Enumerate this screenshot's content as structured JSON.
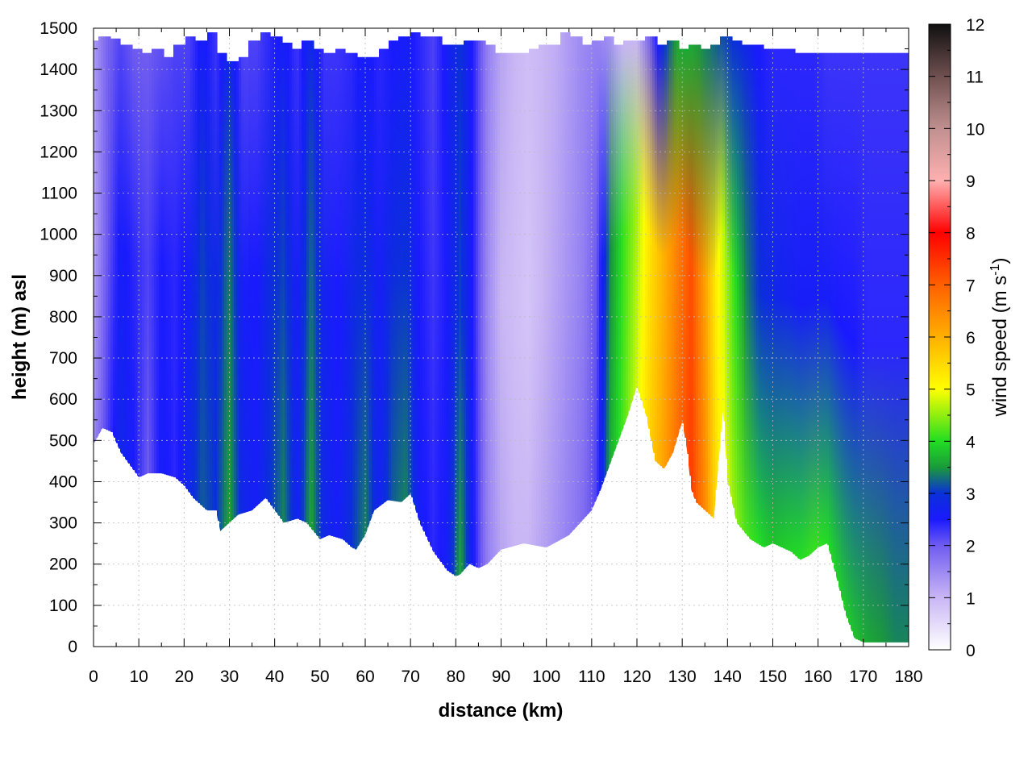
{
  "chart_data": {
    "type": "heatmap",
    "title": "",
    "xlabel": "distance (km)",
    "ylabel": "height (m) asl",
    "colorbar_label": "wind speed (m s",
    "colorbar_label_sup": "-1",
    "colorbar_label_end": ")",
    "xlim": [
      0,
      180
    ],
    "ylim": [
      0,
      1500
    ],
    "zlim": [
      0,
      12
    ],
    "x_ticks": [
      "0",
      "10",
      "20",
      "30",
      "40",
      "50",
      "60",
      "70",
      "80",
      "90",
      "100",
      "110",
      "120",
      "130",
      "140",
      "150",
      "160",
      "170",
      "180"
    ],
    "y_ticks": [
      "0",
      "100",
      "200",
      "300",
      "400",
      "500",
      "600",
      "700",
      "800",
      "900",
      "1000",
      "1100",
      "1200",
      "1300",
      "1400",
      "1500"
    ],
    "z_ticks": [
      "0",
      "1",
      "2",
      "3",
      "4",
      "5",
      "6",
      "7",
      "8",
      "9",
      "10",
      "11",
      "12"
    ],
    "grid": true,
    "colormap": [
      {
        "value": 0,
        "color": "#ffffff"
      },
      {
        "value": 1,
        "color": "#c9b6f5"
      },
      {
        "value": 2,
        "color": "#6f5cf0"
      },
      {
        "value": 2.5,
        "color": "#1a1aff"
      },
      {
        "value": 3,
        "color": "#0a30d8"
      },
      {
        "value": 3.5,
        "color": "#1a9a3a"
      },
      {
        "value": 4,
        "color": "#22dd22"
      },
      {
        "value": 5,
        "color": "#ffff00"
      },
      {
        "value": 6,
        "color": "#ffb000"
      },
      {
        "value": 7,
        "color": "#ff6000"
      },
      {
        "value": 8,
        "color": "#ff0000"
      },
      {
        "value": 9,
        "color": "#ffb0b0"
      },
      {
        "value": 10,
        "color": "#c09090"
      },
      {
        "value": 11,
        "color": "#705050"
      },
      {
        "value": 12,
        "color": "#101010"
      }
    ],
    "terrain": {
      "x": [
        0,
        2,
        4,
        6,
        8,
        10,
        12,
        15,
        18,
        20,
        22,
        25,
        27,
        28,
        30,
        32,
        35,
        38,
        40,
        42,
        45,
        47,
        50,
        52,
        55,
        57,
        58,
        60,
        62,
        65,
        68,
        70,
        72,
        75,
        78,
        80,
        81,
        83,
        85,
        87,
        90,
        95,
        100,
        105,
        110,
        112,
        115,
        118,
        120,
        122,
        124,
        126,
        128,
        130,
        131,
        132,
        133,
        135,
        137,
        139,
        140,
        142,
        145,
        148,
        150,
        152,
        154,
        156,
        158,
        160,
        162,
        164,
        166,
        168,
        170,
        175,
        180
      ],
      "height": [
        490,
        530,
        520,
        470,
        440,
        410,
        420,
        420,
        410,
        390,
        360,
        330,
        330,
        280,
        300,
        320,
        330,
        360,
        330,
        300,
        310,
        300,
        260,
        270,
        260,
        240,
        235,
        270,
        330,
        355,
        350,
        370,
        300,
        230,
        185,
        170,
        175,
        200,
        190,
        200,
        235,
        250,
        240,
        270,
        330,
        380,
        470,
        560,
        630,
        560,
        450,
        430,
        470,
        545,
        480,
        380,
        350,
        330,
        310,
        570,
        400,
        300,
        260,
        240,
        250,
        240,
        230,
        210,
        220,
        240,
        250,
        170,
        80,
        20,
        10,
        10,
        10
      ]
    },
    "top_height": [
      1470,
      1480,
      1475,
      1460,
      1450,
      1440,
      1450,
      1430,
      1460,
      1480,
      1470,
      1490,
      1440,
      1420,
      1430,
      1470,
      1490,
      1480,
      1465,
      1450,
      1470,
      1450,
      1440,
      1450,
      1440,
      1430,
      1430,
      1450,
      1470,
      1480,
      1490,
      1480,
      1480,
      1460,
      1460,
      1470,
      1470,
      1460,
      1440,
      1440,
      1440,
      1450,
      1460,
      1460,
      1490,
      1480,
      1460,
      1470,
      1480,
      1460,
      1470,
      1470,
      1480,
      1460,
      1470,
      1450,
      1460,
      1450,
      1460,
      1480,
      1470,
      1460,
      1460,
      1450,
      1450,
      1450,
      1440,
      1440,
      1440,
      1440,
      1440,
      1440,
      1440,
      1440,
      1440,
      1440,
      1440
    ],
    "wind_columns": {
      "x": [
        0,
        3,
        6,
        9,
        12,
        15,
        18,
        21,
        24,
        27,
        30,
        33,
        36,
        39,
        42,
        45,
        48,
        51,
        54,
        57,
        60,
        63,
        66,
        69,
        72,
        75,
        78,
        81,
        84,
        87,
        90,
        93,
        96,
        99,
        102,
        105,
        108,
        111,
        114,
        117,
        120,
        123,
        126,
        129,
        132,
        135,
        138,
        141,
        144,
        147,
        150,
        153,
        156,
        159,
        162,
        165,
        168,
        171,
        174,
        177,
        180
      ],
      "speed_low": [
        1.5,
        2.2,
        2.8,
        2.5,
        2.0,
        2.6,
        2.4,
        2.8,
        3.2,
        3.0,
        3.6,
        2.8,
        2.6,
        3.0,
        3.4,
        2.7,
        3.6,
        2.8,
        2.6,
        3.0,
        3.4,
        2.7,
        3.2,
        3.4,
        2.6,
        2.4,
        2.6,
        3.6,
        2.5,
        1.6,
        1.2,
        1.0,
        1.0,
        1.2,
        1.4,
        1.6,
        1.8,
        2.2,
        3.6,
        4.2,
        4.8,
        5.6,
        6.2,
        6.8,
        7.4,
        6.5,
        5.2,
        4.6,
        4.2,
        4.0,
        3.8,
        3.9,
        4.0,
        4.1,
        4.0,
        3.9,
        3.8,
        3.6,
        3.5,
        3.4,
        3.4
      ],
      "speed_mid": [
        1.2,
        2.0,
        2.6,
        2.4,
        2.2,
        2.5,
        2.4,
        2.6,
        3.1,
        2.8,
        3.4,
        2.6,
        2.5,
        2.9,
        3.1,
        2.6,
        3.3,
        2.7,
        2.5,
        2.8,
        3.0,
        2.6,
        2.9,
        3.0,
        2.5,
        2.3,
        2.5,
        3.1,
        2.4,
        1.5,
        1.0,
        0.9,
        0.8,
        1.0,
        1.2,
        1.4,
        1.6,
        2.0,
        3.4,
        4.1,
        4.6,
        5.4,
        6.0,
        6.6,
        7.2,
        6.2,
        5.0,
        4.2,
        3.4,
        3.0,
        2.8,
        2.7,
        2.6,
        2.6,
        2.6,
        2.5,
        2.5,
        2.4,
        2.4,
        2.4,
        2.4
      ],
      "speed_high": [
        1.3,
        1.9,
        2.2,
        2.0,
        2.0,
        2.1,
        2.2,
        2.2,
        2.6,
        2.3,
        2.8,
        2.2,
        2.2,
        2.4,
        2.6,
        2.3,
        2.8,
        2.3,
        2.3,
        2.4,
        2.6,
        2.4,
        2.5,
        2.6,
        2.4,
        2.2,
        2.6,
        3.0,
        2.4,
        1.6,
        1.2,
        1.0,
        0.9,
        1.0,
        1.1,
        1.3,
        1.5,
        1.6,
        1.4,
        1.0,
        1.0,
        2.0,
        3.0,
        3.6,
        3.6,
        3.4,
        3.2,
        3.0,
        2.8,
        2.5,
        2.4,
        2.4,
        2.4,
        2.4,
        2.3,
        2.3,
        2.3,
        2.3,
        2.3,
        2.3,
        2.3
      ]
    }
  }
}
